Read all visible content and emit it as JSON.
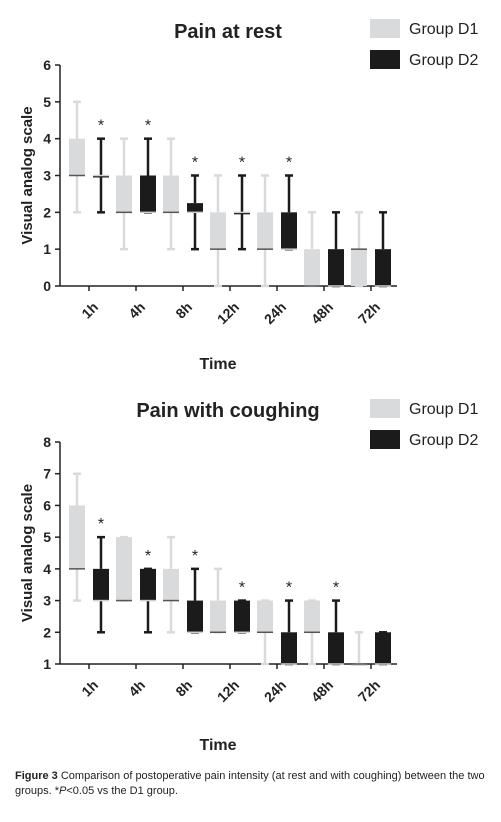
{
  "chart_data": [
    {
      "type": "box",
      "title": "Pain at rest",
      "xlabel": "Time",
      "ylabel": "Visual analog scale",
      "ylim": [
        0,
        6
      ],
      "yticks": [
        "0",
        "1",
        "2",
        "3",
        "4",
        "5",
        "6"
      ],
      "categories": [
        "1h",
        "4h",
        "8h",
        "12h",
        "24h",
        "48h",
        "72h"
      ],
      "legend": {
        "position": "top-right"
      },
      "significance_marker": "*",
      "significant": [
        true,
        true,
        true,
        true,
        true,
        false,
        false
      ],
      "series": [
        {
          "name": "Group D1",
          "color": "#d9dadb",
          "boxes": [
            {
              "min": 2,
              "q1": 3,
              "median": 3,
              "q3": 4,
              "max": 5
            },
            {
              "min": 1,
              "q1": 2,
              "median": 2,
              "q3": 3,
              "max": 4
            },
            {
              "min": 1,
              "q1": 2,
              "median": 2,
              "q3": 3,
              "max": 4
            },
            {
              "min": 0,
              "q1": 1,
              "median": 1,
              "q3": 2,
              "max": 3
            },
            {
              "min": 0,
              "q1": 1,
              "median": 1,
              "q3": 2,
              "max": 3
            },
            {
              "min": 0,
              "q1": 0,
              "median": 0,
              "q3": 1,
              "max": 2
            },
            {
              "min": 0,
              "q1": 0,
              "median": 1,
              "q3": 1,
              "max": 2
            }
          ]
        },
        {
          "name": "Group D2",
          "color": "#1b1b1b",
          "boxes": [
            {
              "min": 2,
              "q1": 3,
              "median": 3,
              "q3": 3,
              "max": 4
            },
            {
              "min": 2,
              "q1": 2,
              "median": 2,
              "q3": 3,
              "max": 4
            },
            {
              "min": 1,
              "q1": 2,
              "median": 2,
              "q3": 2.25,
              "max": 3
            },
            {
              "min": 1,
              "q1": 2,
              "median": 2,
              "q3": 2,
              "max": 3
            },
            {
              "min": 1,
              "q1": 1,
              "median": 1,
              "q3": 2,
              "max": 3
            },
            {
              "min": 0,
              "q1": 0,
              "median": 0,
              "q3": 1,
              "max": 2
            },
            {
              "min": 0,
              "q1": 0,
              "median": 0,
              "q3": 1,
              "max": 2
            }
          ]
        }
      ]
    },
    {
      "type": "box",
      "title": "Pain with coughing",
      "xlabel": "Time",
      "ylabel": "Visual analog scale",
      "ylim": [
        1,
        8
      ],
      "yticks": [
        "1",
        "2",
        "3",
        "4",
        "5",
        "6",
        "7",
        "8"
      ],
      "categories": [
        "1h",
        "4h",
        "8h",
        "12h",
        "24h",
        "48h",
        "72h"
      ],
      "legend": {
        "position": "top-right"
      },
      "significance_marker": "*",
      "significant": [
        true,
        true,
        true,
        true,
        true,
        true,
        false
      ],
      "series": [
        {
          "name": "Group D1",
          "color": "#d9dadb",
          "boxes": [
            {
              "min": 3,
              "q1": 4,
              "median": 4,
              "q3": 6,
              "max": 7
            },
            {
              "min": 3,
              "q1": 3,
              "median": 3,
              "q3": 5,
              "max": 5
            },
            {
              "min": 2,
              "q1": 3,
              "median": 3,
              "q3": 4,
              "max": 5
            },
            {
              "min": 2,
              "q1": 2,
              "median": 2,
              "q3": 3,
              "max": 4
            },
            {
              "min": 1,
              "q1": 2,
              "median": 2,
              "q3": 3,
              "max": 3
            },
            {
              "min": 1,
              "q1": 2,
              "median": 2,
              "q3": 3,
              "max": 3
            },
            {
              "min": 1,
              "q1": 1,
              "median": 1,
              "q3": 1,
              "max": 2
            }
          ]
        },
        {
          "name": "Group D2",
          "color": "#1b1b1b",
          "boxes": [
            {
              "min": 2,
              "q1": 3,
              "median": 3,
              "q3": 4,
              "max": 5
            },
            {
              "min": 2,
              "q1": 3,
              "median": 3,
              "q3": 4,
              "max": 4
            },
            {
              "min": 2,
              "q1": 2,
              "median": 2,
              "q3": 3,
              "max": 4
            },
            {
              "min": 2,
              "q1": 2,
              "median": 2,
              "q3": 3,
              "max": 3
            },
            {
              "min": 1,
              "q1": 1,
              "median": 1,
              "q3": 2,
              "max": 3
            },
            {
              "min": 1,
              "q1": 1,
              "median": 1,
              "q3": 2,
              "max": 3
            },
            {
              "min": 1,
              "q1": 1,
              "median": 1,
              "q3": 2,
              "max": 2
            }
          ]
        }
      ]
    }
  ],
  "caption": {
    "label": "Figure 3",
    "text_before": " Comparison of postoperative pain intensity (at rest and with coughing) between the two groups. *",
    "p_symbol": "P",
    "text_after": "<0.05 vs the D1 group."
  }
}
